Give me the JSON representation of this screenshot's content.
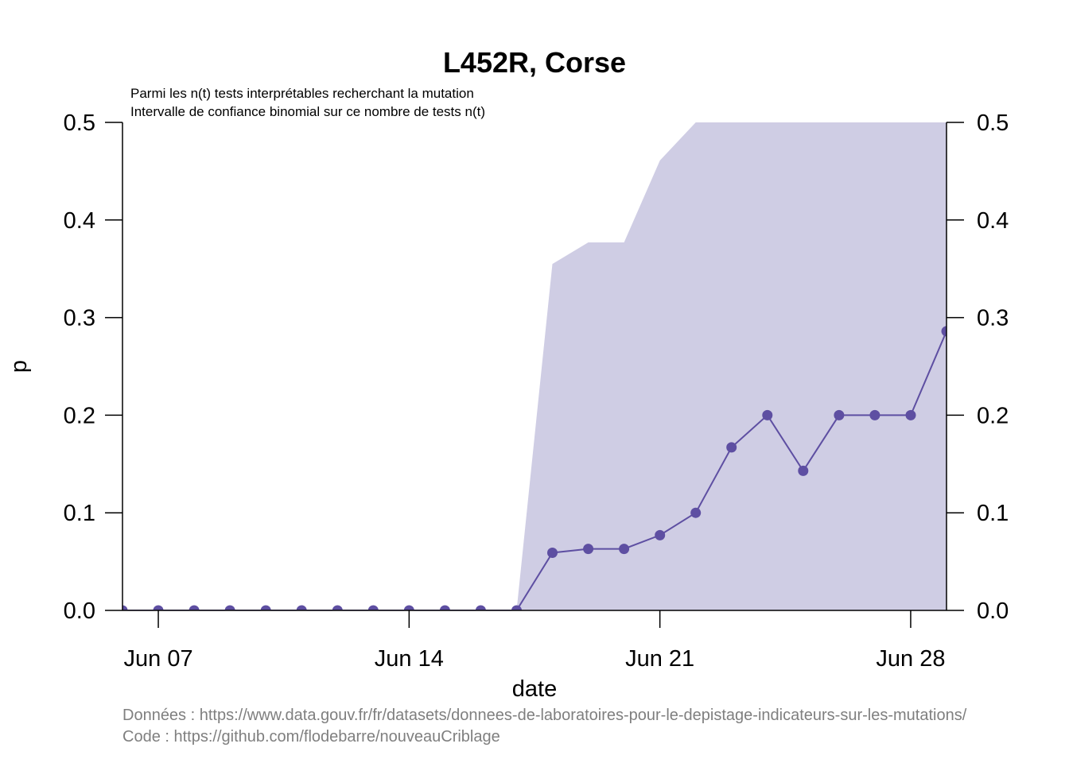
{
  "chart_data": {
    "type": "line",
    "title": "L452R, Corse",
    "subtitle_lines": [
      "Parmi les n(t) tests interprétables recherchant la mutation",
      "Intervalle de confiance binomial sur ce nombre de tests n(t)"
    ],
    "xlabel": "date",
    "ylabel": "p",
    "xlim": [
      "2021-06-06",
      "2021-06-29"
    ],
    "ylim": [
      0,
      0.5
    ],
    "y_ticks": [
      "0.0",
      "0.1",
      "0.2",
      "0.3",
      "0.4",
      "0.5"
    ],
    "x_ticks": [
      {
        "date": "2021-06-07",
        "label": "Jun 07"
      },
      {
        "date": "2021-06-14",
        "label": "Jun 14"
      },
      {
        "date": "2021-06-21",
        "label": "Jun 21"
      },
      {
        "date": "2021-06-28",
        "label": "Jun 28"
      }
    ],
    "right_axis": true,
    "grid": false,
    "colors": {
      "line": "#5e4fa2",
      "ci_fill": "#cfcde4"
    },
    "series": [
      {
        "x": [
          "2021-06-06",
          "2021-06-07",
          "2021-06-08",
          "2021-06-09",
          "2021-06-10",
          "2021-06-11",
          "2021-06-12",
          "2021-06-13",
          "2021-06-14",
          "2021-06-15",
          "2021-06-16",
          "2021-06-17",
          "2021-06-18",
          "2021-06-19",
          "2021-06-20",
          "2021-06-21",
          "2021-06-22",
          "2021-06-23",
          "2021-06-24",
          "2021-06-25",
          "2021-06-26",
          "2021-06-27",
          "2021-06-28",
          "2021-06-29"
        ],
        "values": [
          0,
          0,
          0,
          0,
          0,
          0,
          0,
          0,
          0,
          0,
          0,
          0,
          0.059,
          0.063,
          0.063,
          0.077,
          0.1,
          0.167,
          0.2,
          0.143,
          0.2,
          0.2,
          0.2,
          0.286
        ]
      }
    ],
    "confidence_band": {
      "x": [
        "2021-06-17",
        "2021-06-18",
        "2021-06-19",
        "2021-06-20",
        "2021-06-21",
        "2021-06-22",
        "2021-06-23",
        "2021-06-24",
        "2021-06-25",
        "2021-06-26",
        "2021-06-27",
        "2021-06-28",
        "2021-06-29"
      ],
      "upper": [
        0,
        0.355,
        0.377,
        0.377,
        0.461,
        0.5,
        0.5,
        0.5,
        0.5,
        0.5,
        0.5,
        0.5,
        0.5
      ],
      "lower": [
        0,
        0,
        0,
        0,
        0,
        0,
        0,
        0,
        0,
        0,
        0,
        0,
        0
      ]
    }
  },
  "captions": [
    "Données : https://www.data.gouv.fr/fr/datasets/donnees-de-laboratoires-pour-le-depistage-indicateurs-sur-les-mutations/",
    "Code : https://github.com/flodebarre/nouveauCriblage"
  ]
}
